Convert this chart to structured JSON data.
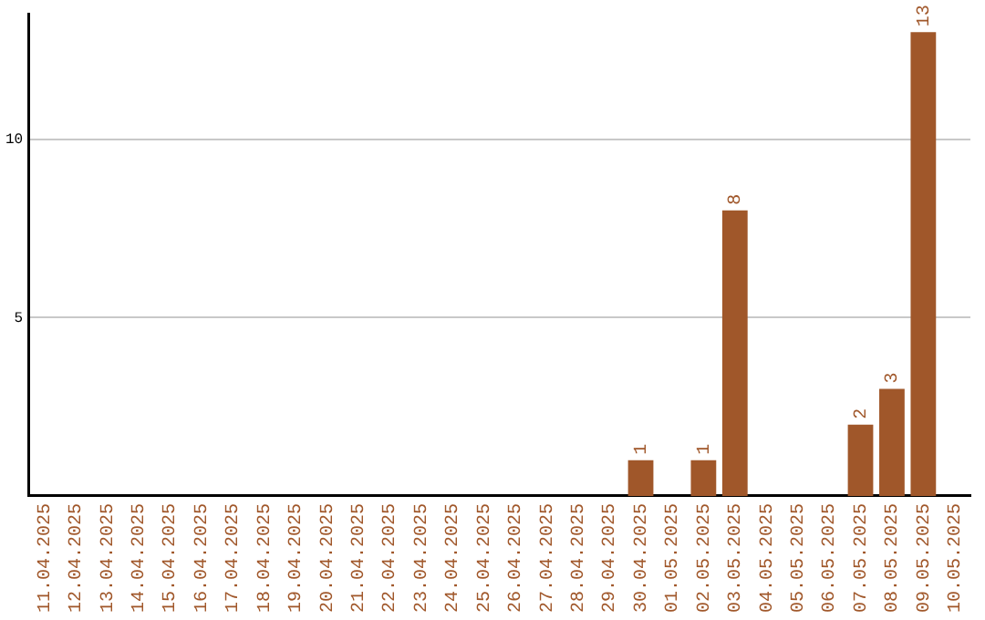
{
  "chart_data": {
    "type": "bar",
    "categories": [
      "11.04.2025",
      "12.04.2025",
      "13.04.2025",
      "14.04.2025",
      "15.04.2025",
      "16.04.2025",
      "17.04.2025",
      "18.04.2025",
      "19.04.2025",
      "20.04.2025",
      "21.04.2025",
      "22.04.2025",
      "23.04.2025",
      "24.04.2025",
      "25.04.2025",
      "26.04.2025",
      "27.04.2025",
      "28.04.2025",
      "29.04.2025",
      "30.04.2025",
      "01.05.2025",
      "02.05.2025",
      "03.05.2025",
      "04.05.2025",
      "05.05.2025",
      "06.05.2025",
      "07.05.2025",
      "08.05.2025",
      "09.05.2025",
      "10.05.2025"
    ],
    "values": [
      0,
      0,
      0,
      0,
      0,
      0,
      0,
      0,
      0,
      0,
      0,
      0,
      0,
      0,
      0,
      0,
      0,
      0,
      0,
      1,
      0,
      1,
      8,
      0,
      0,
      0,
      2,
      3,
      13,
      0
    ],
    "value_labels": [
      null,
      null,
      null,
      null,
      null,
      null,
      null,
      null,
      null,
      null,
      null,
      null,
      null,
      null,
      null,
      null,
      null,
      null,
      null,
      "1",
      null,
      "1",
      "8",
      null,
      null,
      null,
      "2",
      "3",
      "13",
      null
    ],
    "color": "#a0572a",
    "ylim": [
      0,
      13.5
    ],
    "yticks": [
      5,
      10
    ],
    "grid": "y",
    "legend": false
  }
}
